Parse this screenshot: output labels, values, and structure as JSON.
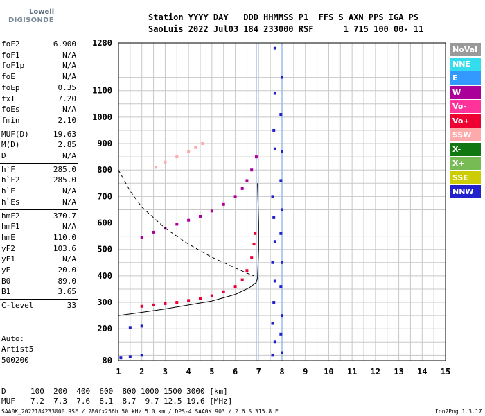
{
  "logo": {
    "line1": "Lowell",
    "line2": "DIGISONDE"
  },
  "header": {
    "line1": "Station YYYY DAY   DDD HHMMSS P1  FFS S AXN PPS IGA PS",
    "line2": "SaoLuis 2022 Jul03 184 233000 RSF      1 715 100 00- 11"
  },
  "params_group1": [
    {
      "name": "foF2",
      "value": "6.900"
    },
    {
      "name": "foF1",
      "value": "N/A"
    },
    {
      "name": "foF1p",
      "value": "N/A"
    },
    {
      "name": "foE",
      "value": "N/A"
    },
    {
      "name": "foEp",
      "value": "0.35"
    },
    {
      "name": "fxI",
      "value": "7.20"
    },
    {
      "name": "foEs",
      "value": "N/A"
    },
    {
      "name": "fmin",
      "value": "2.10"
    }
  ],
  "params_group2": [
    {
      "name": "MUF(D)",
      "value": "19.63"
    },
    {
      "name": "M(D)",
      "value": "2.85"
    },
    {
      "name": "D",
      "value": "N/A"
    }
  ],
  "params_group3": [
    {
      "name": "h`F",
      "value": "285.0"
    },
    {
      "name": "h`F2",
      "value": "285.0"
    },
    {
      "name": "h`E",
      "value": "N/A"
    },
    {
      "name": "h`Es",
      "value": "N/A"
    }
  ],
  "params_group4": [
    {
      "name": "hmF2",
      "value": "370.7"
    },
    {
      "name": "hmF1",
      "value": "N/A"
    },
    {
      "name": "hmE",
      "value": "110.0"
    },
    {
      "name": "yF2",
      "value": "103.6"
    },
    {
      "name": "yF1",
      "value": "N/A"
    },
    {
      "name": "yE",
      "value": "20.0"
    },
    {
      "name": "B0",
      "value": "89.0"
    },
    {
      "name": "B1",
      "value": "3.65"
    }
  ],
  "params_group5": [
    {
      "name": "C-level",
      "value": "33"
    }
  ],
  "auto": {
    "line1": "Auto:",
    "line2": "Artist5",
    "line3": "500200"
  },
  "muf_table": {
    "d_label": "D",
    "muf_label": "MUF",
    "d_values": "100  200  400  600  800 1000 1500 3000 [km]",
    "muf_values": "7.2  7.3  7.6  8.1  8.7  9.7 12.5 19.6 [MHz]"
  },
  "footer": {
    "left": "SAA0K_2022184233000.RSF / 280fx256h 50 kHz 5.0 km / DPS-4 SAA0K 903 / 2.6 S 315.8 E",
    "right": "Ion2Png 1.3.17"
  },
  "legend": [
    {
      "label": "NoVal",
      "color": "#9a9a9a"
    },
    {
      "label": "NNE",
      "color": "#33ddee"
    },
    {
      "label": "E",
      "color": "#3399ff"
    },
    {
      "label": "W",
      "color": "#aa0099"
    },
    {
      "label": "Vo-",
      "color": "#ff3399"
    },
    {
      "label": "Vo+",
      "color": "#ee0033"
    },
    {
      "label": "SSW",
      "color": "#ffaaaa"
    },
    {
      "label": "X-",
      "color": "#117711"
    },
    {
      "label": "X+",
      "color": "#77bb55"
    },
    {
      "label": "SSE",
      "color": "#cccc00"
    },
    {
      "label": "NNW",
      "color": "#2222cc"
    }
  ],
  "chart_data": {
    "type": "scatter",
    "xlim": [
      1,
      15
    ],
    "ylim": [
      80,
      1280
    ],
    "x_ticks": [
      "1",
      "2",
      "3",
      "4",
      "5",
      "6",
      "7",
      "8",
      "9",
      "10",
      "11",
      "12",
      "13",
      "14",
      "15"
    ],
    "y_ticks": [
      "80",
      "200",
      "300",
      "400",
      "500",
      "600",
      "700",
      "800",
      "900",
      "1000",
      "1100",
      "1280"
    ],
    "grid": true,
    "x_grid": [
      1,
      1.5,
      2,
      2.5,
      3,
      3.5,
      4,
      4.5,
      5,
      5.5,
      6,
      6.5,
      7,
      7.5,
      8,
      8.5,
      9,
      9.5,
      10,
      10.5,
      11,
      11.5,
      12,
      12.5,
      13,
      13.5,
      14,
      14.5,
      15
    ],
    "y_grid": [
      80,
      100,
      150,
      200,
      250,
      300,
      350,
      400,
      450,
      500,
      550,
      600,
      650,
      700,
      750,
      800,
      850,
      900,
      950,
      1000,
      1050,
      1100,
      1150,
      1200,
      1280
    ],
    "vertical_lines": [
      {
        "x": 6.9,
        "color": "#99bbee"
      },
      {
        "x": 8.0,
        "color": "#99bbee"
      }
    ],
    "series": [
      {
        "class": "o-trace-F2",
        "color": "#ee0033",
        "points": [
          [
            2.0,
            285
          ],
          [
            2.5,
            290
          ],
          [
            3.0,
            295
          ],
          [
            3.5,
            300
          ],
          [
            4.0,
            307
          ],
          [
            4.5,
            315
          ],
          [
            5.0,
            325
          ],
          [
            5.5,
            340
          ],
          [
            6.0,
            360
          ],
          [
            6.3,
            385
          ],
          [
            6.5,
            420
          ],
          [
            6.7,
            470
          ],
          [
            6.8,
            520
          ],
          [
            6.85,
            560
          ]
        ]
      },
      {
        "class": "x-trace-F2",
        "color": "#aa0099",
        "points": [
          [
            2.0,
            545
          ],
          [
            2.5,
            565
          ],
          [
            3.0,
            580
          ],
          [
            3.5,
            595
          ],
          [
            4.0,
            610
          ],
          [
            4.5,
            625
          ],
          [
            5.0,
            645
          ],
          [
            5.5,
            670
          ],
          [
            6.0,
            700
          ],
          [
            6.3,
            730
          ],
          [
            6.5,
            760
          ],
          [
            6.7,
            800
          ],
          [
            6.9,
            850
          ]
        ]
      },
      {
        "class": "multi-hop",
        "color": "#ffaaaa",
        "points": [
          [
            2.6,
            810
          ],
          [
            3.0,
            830
          ],
          [
            3.5,
            850
          ],
          [
            4.0,
            870
          ],
          [
            4.3,
            885
          ],
          [
            4.6,
            900
          ]
        ]
      },
      {
        "class": "low-echo",
        "color": "#2222cc",
        "points": [
          [
            1.1,
            90
          ],
          [
            1.5,
            95
          ],
          [
            2.0,
            100
          ],
          [
            1.5,
            205
          ],
          [
            2.0,
            210
          ]
        ]
      },
      {
        "class": "interference",
        "color": "#2222cc",
        "points": [
          [
            7.7,
            1260
          ],
          [
            7.7,
            1090
          ],
          [
            7.65,
            950
          ],
          [
            7.7,
            880
          ],
          [
            7.6,
            700
          ],
          [
            7.65,
            620
          ],
          [
            7.7,
            530
          ],
          [
            7.6,
            450
          ],
          [
            7.7,
            380
          ],
          [
            7.65,
            300
          ],
          [
            7.6,
            220
          ],
          [
            7.7,
            150
          ],
          [
            7.6,
            100
          ],
          [
            8.0,
            1150
          ],
          [
            7.95,
            1010
          ],
          [
            8.0,
            870
          ],
          [
            7.95,
            760
          ],
          [
            8.0,
            650
          ],
          [
            7.95,
            560
          ],
          [
            8.0,
            450
          ],
          [
            7.95,
            360
          ],
          [
            8.0,
            250
          ],
          [
            7.95,
            180
          ],
          [
            8.0,
            110
          ]
        ]
      }
    ],
    "profile_curves": [
      {
        "name": "profile-solid",
        "style": "solid",
        "points": [
          [
            1,
            250
          ],
          [
            2,
            262
          ],
          [
            3,
            275
          ],
          [
            4,
            290
          ],
          [
            5,
            305
          ],
          [
            6,
            330
          ],
          [
            6.6,
            355
          ],
          [
            6.9,
            375
          ],
          [
            6.95,
            390
          ],
          [
            7.0,
            500
          ],
          [
            7.0,
            600
          ],
          [
            6.95,
            750
          ]
        ]
      },
      {
        "name": "profile-dashed",
        "style": "dashed",
        "points": [
          [
            1,
            800
          ],
          [
            1.5,
            720
          ],
          [
            2,
            660
          ],
          [
            3,
            580
          ],
          [
            4,
            520
          ],
          [
            5,
            470
          ],
          [
            6,
            430
          ],
          [
            6.5,
            410
          ],
          [
            6.8,
            400
          ]
        ]
      }
    ]
  }
}
